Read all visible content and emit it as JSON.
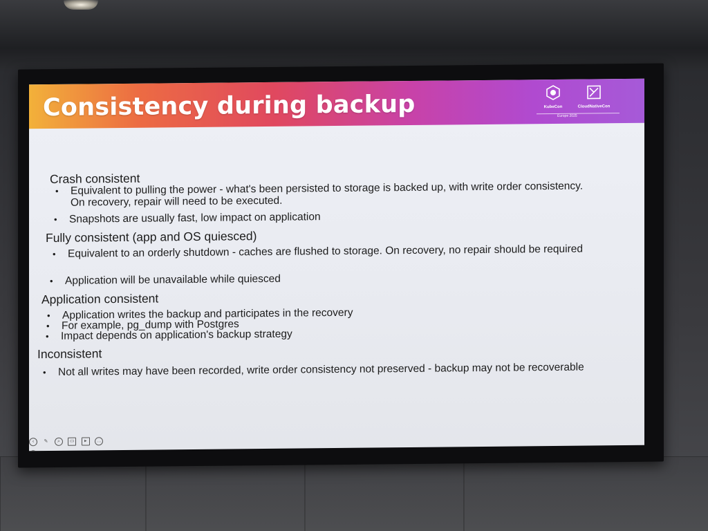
{
  "slide": {
    "title": "Consistency during backup",
    "logos": {
      "kubecon": "KubeCon",
      "cloudnativecon": "CloudNativeCon",
      "event": "Europe 2025"
    },
    "sections": [
      {
        "heading": "Crash consistent",
        "bullets": [
          "Equivalent to pulling the power - what's been persisted to storage is backed up, with write order consistency.  On recovery, repair will need to be executed.",
          "Snapshots are usually fast, low impact on application"
        ]
      },
      {
        "heading": "Fully consistent (app and OS quiesced)",
        "bullets": [
          "Equivalent to an orderly shutdown - caches are flushed to storage.  On recovery, no repair should be required",
          "Application will be unavailable while quiesced"
        ]
      },
      {
        "heading": "Application consistent",
        "bullets": [
          "Application writes the backup and participates in the recovery",
          "For example, pg_dump with Postgres",
          "Impact depends on application's backup strategy"
        ]
      },
      {
        "heading": "Inconsistent",
        "bullets": [
          "Not all writes may have been recorded, write order consistency not preserved - backup may not be recoverable"
        ]
      }
    ]
  },
  "colors": {
    "header_start": "#f2b13a",
    "header_mid": "#e0485f",
    "header_end": "#a65ad8",
    "slide_bg": "#eef0f6",
    "frame": "#0d0d0f"
  },
  "icons": [
    "viewer-prev-icon",
    "pen-icon",
    "search-icon",
    "subtitles-icon",
    "camera-icon",
    "more-icon",
    "next-icon"
  ]
}
